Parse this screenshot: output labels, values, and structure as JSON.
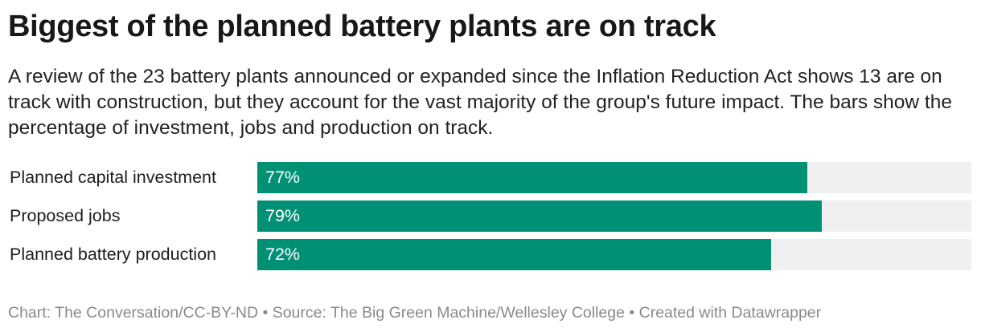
{
  "chart_data": {
    "type": "bar",
    "orientation": "horizontal",
    "title": "Biggest of the planned battery plants are on track",
    "subtitle": "A review of the 23 battery plants announced or expanded since the Inflation Reduction Act shows 13 are on track with construction, but they account for the vast majority of the group's future impact. The bars show the percentage of investment, jobs and production on track.",
    "categories": [
      "Planned capital investment",
      "Proposed jobs",
      "Planned battery production"
    ],
    "values": [
      77,
      79,
      72
    ],
    "labels": [
      "77%",
      "79%",
      "72%"
    ],
    "xlim": [
      0,
      100
    ],
    "bar_color": "#009175",
    "track_color": "#f0f0f0",
    "footer": "Chart: The Conversation/CC-BY-ND • Source: The Big Green Machine/Wellesley College • Created with Datawrapper"
  }
}
